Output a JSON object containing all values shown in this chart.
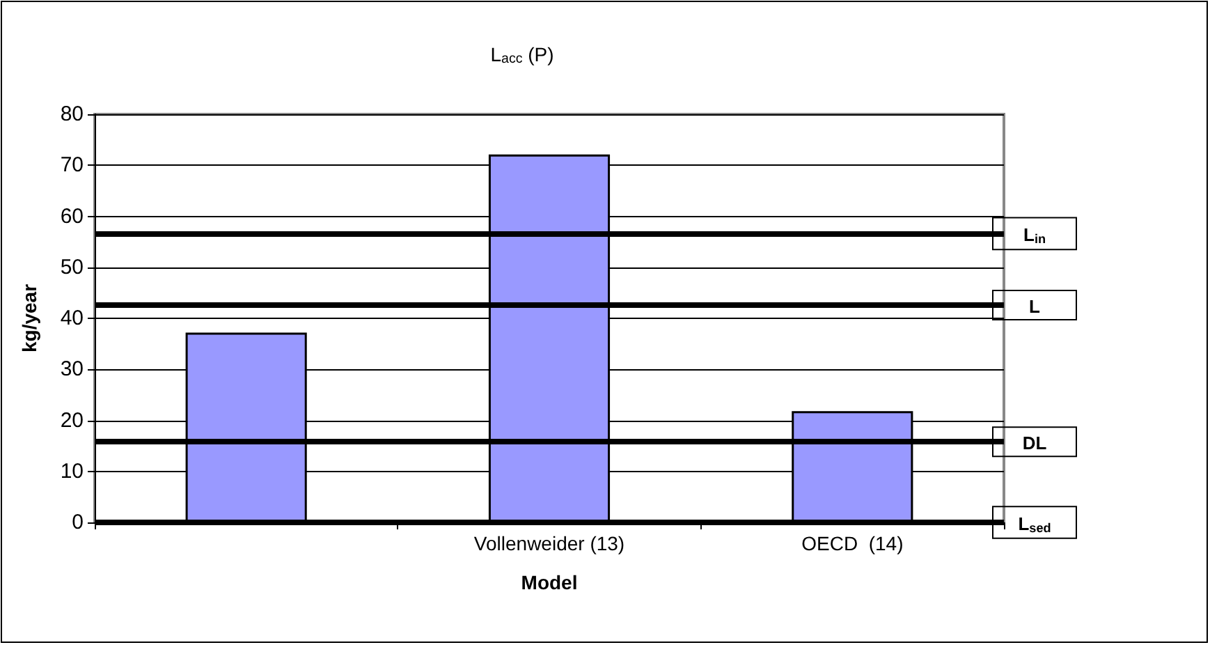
{
  "chart_data": {
    "type": "bar",
    "title": "L$_{acc}$ (P)",
    "xlabel": "Model",
    "ylabel": "kg/year",
    "categories": [
      null,
      "Vollenweider (13)",
      "OECD  (14)"
    ],
    "values": [
      37.2,
      72.1,
      21.8
    ],
    "color": "#9999ff",
    "ylim": [
      0,
      80
    ],
    "yticks": [
      0,
      10,
      20,
      30,
      40,
      50,
      60,
      70,
      80
    ],
    "grid": "y",
    "ref_lines": [
      {
        "axis": "y",
        "value": 56.6,
        "label": "L$_{in}$",
        "color": "#000000",
        "line_style": "solid"
      },
      {
        "axis": "y",
        "value": 42.6,
        "label": "L",
        "color": "#000000",
        "line_style": "solid"
      },
      {
        "axis": "y",
        "value": 15.8,
        "label": "DL",
        "color": "#000000",
        "line_style": "solid"
      },
      {
        "axis": "y",
        "value": 0,
        "label": "L$_{sed}$",
        "color": "#000000",
        "line_style": "solid"
      }
    ]
  }
}
